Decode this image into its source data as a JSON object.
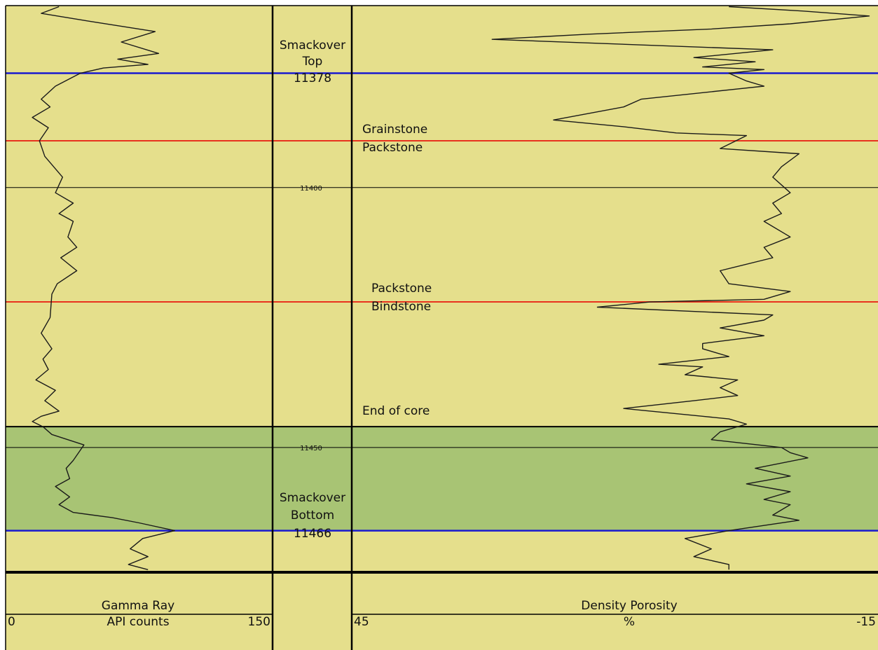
{
  "colors": {
    "background": "#e5df8c",
    "core_zone": "#a8c474",
    "formation_boundary": "#1a1acf",
    "facies_boundary": "#e8321e",
    "grid": "#000000",
    "curve": "#1a1a1a"
  },
  "chart_data": {
    "type": "line",
    "title": "",
    "depth_axis": {
      "range": [
        11365,
        11474
      ],
      "tick_labels": [
        "11400",
        "11450"
      ],
      "ticks": [
        11400,
        11450
      ]
    },
    "tracks": [
      {
        "name": "Gamma Ray",
        "unit": "API counts",
        "scale_left": "0",
        "scale_right": "150",
        "range": [
          0,
          150
        ]
      },
      {
        "name": "Density Porosity",
        "unit": "%",
        "scale_left": "45",
        "scale_right": "-15",
        "range": [
          45,
          -15
        ]
      }
    ],
    "formation_tops": [
      {
        "label_line1": "Smackover",
        "label_line2": "Top",
        "depth_label": "11378",
        "depth": 11378
      },
      {
        "label_line1": "Smackover",
        "label_line2": "Bottom",
        "depth_label": "11466",
        "depth": 11466
      }
    ],
    "facies_boundaries": [
      {
        "label_line1": "Grainstone",
        "label_line2": "Packstone",
        "depth": 11391
      },
      {
        "label_line1": "Packstone",
        "label_line2": "Bindstone",
        "depth": 11422
      }
    ],
    "annotations": [
      {
        "label": "End of core",
        "depth": 11446
      }
    ],
    "shaded_zones": [
      {
        "from": 11446,
        "to": 11466
      }
    ],
    "series": [
      {
        "track": 0,
        "points": [
          [
            11365.2,
            30
          ],
          [
            11366.5,
            20
          ],
          [
            11368,
            47
          ],
          [
            11370,
            84
          ],
          [
            11372,
            65
          ],
          [
            11374.2,
            86
          ],
          [
            11375.3,
            63
          ],
          [
            11376.3,
            80
          ],
          [
            11377,
            55
          ],
          [
            11378,
            42
          ],
          [
            11380.5,
            28
          ],
          [
            11383,
            20
          ],
          [
            11384.5,
            25
          ],
          [
            11386.5,
            15
          ],
          [
            11388.5,
            24
          ],
          [
            11391,
            19
          ],
          [
            11394,
            22
          ],
          [
            11398,
            32
          ],
          [
            11401,
            28
          ],
          [
            11403,
            38
          ],
          [
            11405,
            30
          ],
          [
            11406.5,
            38
          ],
          [
            11409.5,
            35
          ],
          [
            11411.5,
            40
          ],
          [
            11413.5,
            31
          ],
          [
            11416,
            40
          ],
          [
            11418.5,
            29
          ],
          [
            11420.5,
            26
          ],
          [
            11425,
            25
          ],
          [
            11428,
            20
          ],
          [
            11431,
            26
          ],
          [
            11433,
            21
          ],
          [
            11435,
            24
          ],
          [
            11437,
            17
          ],
          [
            11439,
            28
          ],
          [
            11441,
            22
          ],
          [
            11443,
            30
          ],
          [
            11444,
            20
          ],
          [
            11445,
            15
          ],
          [
            11446,
            21
          ],
          [
            11447.5,
            26
          ],
          [
            11449.5,
            44
          ],
          [
            11452.5,
            38
          ],
          [
            11454,
            34
          ],
          [
            11456,
            36
          ],
          [
            11457.5,
            28
          ],
          [
            11459.5,
            36
          ],
          [
            11461,
            30
          ],
          [
            11462.5,
            38
          ],
          [
            11463.5,
            60
          ],
          [
            11464.5,
            75
          ],
          [
            11466,
            95
          ],
          [
            11467.5,
            77
          ],
          [
            11469.5,
            70
          ],
          [
            11471,
            80
          ],
          [
            11472.5,
            69
          ],
          [
            11473.5,
            80
          ]
        ]
      },
      {
        "track": 1,
        "points": [
          [
            11365.2,
            2
          ],
          [
            11366,
            -6
          ],
          [
            11367,
            -14
          ],
          [
            11368.5,
            -5
          ],
          [
            11369.5,
            4
          ],
          [
            11370.5,
            18
          ],
          [
            11371.5,
            29
          ],
          [
            11373.5,
            -3
          ],
          [
            11375,
            6
          ],
          [
            11375.8,
            -1
          ],
          [
            11376.8,
            5
          ],
          [
            11377.3,
            -2
          ],
          [
            11378,
            2
          ],
          [
            11379.5,
            0
          ],
          [
            11380.5,
            -2
          ],
          [
            11383,
            12
          ],
          [
            11384.5,
            14
          ],
          [
            11387,
            22
          ],
          [
            11388.3,
            14
          ],
          [
            11389.5,
            8
          ],
          [
            11390,
            0
          ],
          [
            11392.5,
            3
          ],
          [
            11393.5,
            -6
          ],
          [
            11396,
            -4
          ],
          [
            11398,
            -3
          ],
          [
            11401,
            -5
          ],
          [
            11403,
            -3
          ],
          [
            11405,
            -4
          ],
          [
            11406.5,
            -2
          ],
          [
            11409.5,
            -5
          ],
          [
            11411.5,
            -2
          ],
          [
            11413.5,
            -3
          ],
          [
            11416,
            3
          ],
          [
            11418.5,
            2
          ],
          [
            11420,
            -5
          ],
          [
            11421.5,
            -2
          ],
          [
            11422,
            11
          ],
          [
            11423,
            17
          ],
          [
            11424.5,
            -3
          ],
          [
            11425.5,
            -2
          ],
          [
            11427,
            3
          ],
          [
            11428.5,
            -2
          ],
          [
            11430,
            5
          ],
          [
            11431,
            5
          ],
          [
            11432.5,
            2
          ],
          [
            11434,
            10
          ],
          [
            11434.5,
            5
          ],
          [
            11436,
            7
          ],
          [
            11437,
            1
          ],
          [
            11438.5,
            3
          ],
          [
            11440,
            1
          ],
          [
            11441,
            6
          ],
          [
            11442.5,
            14
          ],
          [
            11444,
            5
          ],
          [
            11444.5,
            2
          ],
          [
            11445.5,
            0
          ],
          [
            11447,
            3
          ],
          [
            11448.5,
            4
          ],
          [
            11450,
            -4
          ],
          [
            11451,
            -5
          ],
          [
            11452,
            -7
          ],
          [
            11454,
            -1
          ],
          [
            11455.5,
            -5
          ],
          [
            11457,
            0
          ],
          [
            11458.5,
            -5
          ],
          [
            11460,
            -2
          ],
          [
            11461,
            -5
          ],
          [
            11463,
            -3
          ],
          [
            11464,
            -6
          ],
          [
            11466,
            2
          ],
          [
            11467.5,
            7
          ],
          [
            11469.5,
            4
          ],
          [
            11471,
            6
          ],
          [
            11472.5,
            2
          ],
          [
            11473.5,
            2
          ]
        ]
      }
    ]
  }
}
